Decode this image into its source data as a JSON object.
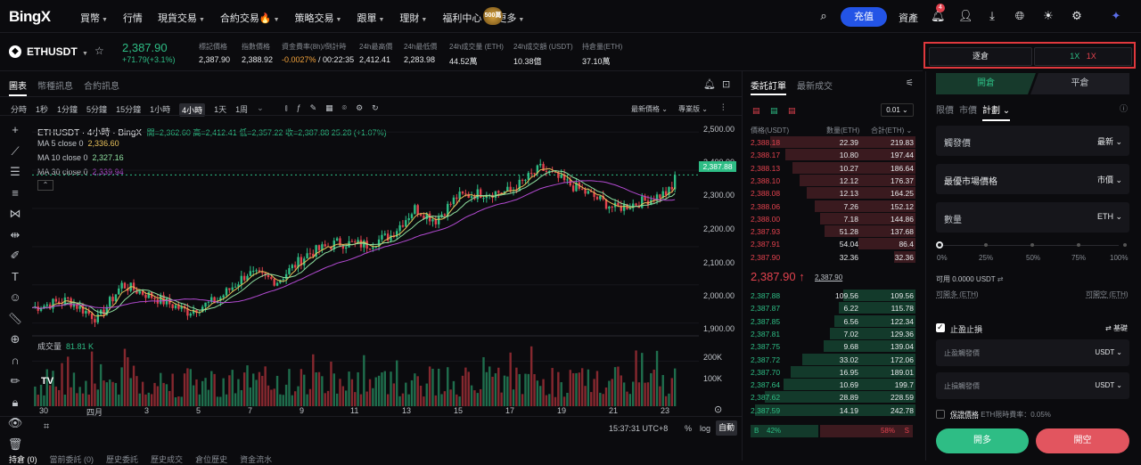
{
  "nav": {
    "logo": "BingX",
    "menu": [
      "買幣",
      "行情",
      "現貨交易",
      "合約交易",
      "策略交易",
      "跟單",
      "理財",
      "福利中心",
      "更多"
    ],
    "charge": "充值",
    "assets": "資產",
    "bell_count": "4",
    "promo": "500萬"
  },
  "ticker": {
    "symbol": "ETHUSDT",
    "price": "2,387.90",
    "change": "+71.79(+3.1%)",
    "stats": [
      {
        "label": "標記價格",
        "value": "2,387.90"
      },
      {
        "label": "指數價格",
        "value": "2,388.92"
      },
      {
        "label": "資金費率(8h)/倒計時",
        "value_a": "-0.0027%",
        "value_b": "/ 00:22:35"
      },
      {
        "label": "24h最高價",
        "value": "2,412.41"
      },
      {
        "label": "24h最低價",
        "value": "2,283.98"
      },
      {
        "label": "24h成交量 (ETH)",
        "value": "44.52萬"
      },
      {
        "label": "24h成交額 (USDT)",
        "value": "10.38億"
      },
      {
        "label": "持倉量(ETH)",
        "value": "37.10萬"
      }
    ]
  },
  "margin": {
    "mode": "逐倉",
    "lev_long": "1X",
    "lev_short": "1X"
  },
  "chart": {
    "tabs": [
      "圖表",
      "幣種訊息",
      "合約訊息"
    ],
    "intervals": [
      "分時",
      "1秒",
      "1分鐘",
      "5分鐘",
      "15分鐘",
      "1小時",
      "4小時",
      "1天",
      "1周"
    ],
    "right_opts": [
      "最新價格",
      "專業版"
    ],
    "title": "ETHUSDT · 4小時 · BingX",
    "ohlc": "開=2,362.60  高=2,412.41  低=2,357.22  收=2,387.88  25.28 (+1.07%)",
    "ma": [
      {
        "label": "MA 5 close 0",
        "value": "2,336.60",
        "color": "#e8c15a"
      },
      {
        "label": "MA 10 close 0",
        "value": "2,327.16",
        "color": "#8fe0a0"
      },
      {
        "label": "MA 30 close 0",
        "value": "2,339.94",
        "color": "#b24ad1"
      }
    ],
    "vol_label": "成交量",
    "vol_value": "81.81 K",
    "last_tag": "2,387.88",
    "y_labels": [
      "2,500.00",
      "2,400.00",
      "2,300.00",
      "2,200.00",
      "2,100.00",
      "2,000.00",
      "1,900.00"
    ],
    "vol_y": [
      "200K",
      "100K"
    ],
    "x_labels": [
      "30",
      "四月",
      "3",
      "5",
      "7",
      "9",
      "11",
      "13",
      "15",
      "17",
      "19",
      "21",
      "23"
    ],
    "time": "15:37:31 UTC+8",
    "pct": "%",
    "log": "log",
    "auto": "自動",
    "bottom_tabs": [
      "持倉 (0)",
      "當前委託 (0)",
      "歷史委託",
      "歷史成交",
      "倉位歷史",
      "資金流水"
    ]
  },
  "book": {
    "tabs": [
      "委託訂單",
      "最新成交"
    ],
    "step": "0.01",
    "headers": [
      "價格(USDT)",
      "數量(ETH)",
      "合計(ETH)"
    ],
    "asks": [
      [
        "2,388.18",
        "22.39",
        "219.83"
      ],
      [
        "2,388.17",
        "10.80",
        "197.44"
      ],
      [
        "2,388.13",
        "10.27",
        "186.64"
      ],
      [
        "2,388.10",
        "12.12",
        "176.37"
      ],
      [
        "2,388.08",
        "12.13",
        "164.25"
      ],
      [
        "2,388.06",
        "7.26",
        "152.12"
      ],
      [
        "2,388.00",
        "7.18",
        "144.86"
      ],
      [
        "2,387.93",
        "51.28",
        "137.68"
      ],
      [
        "2,387.91",
        "54.04",
        "86.4"
      ],
      [
        "2,387.90",
        "32.36",
        "32.36"
      ]
    ],
    "mid": "2,387.90 ↑",
    "mid2": "2,387.90",
    "bids": [
      [
        "2,387.88",
        "109.56",
        "109.56"
      ],
      [
        "2,387.87",
        "6.22",
        "115.78"
      ],
      [
        "2,387.85",
        "6.56",
        "122.34"
      ],
      [
        "2,387.81",
        "7.02",
        "129.36"
      ],
      [
        "2,387.75",
        "9.68",
        "139.04"
      ],
      [
        "2,387.72",
        "33.02",
        "172.06"
      ],
      [
        "2,387.70",
        "16.95",
        "189.01"
      ],
      [
        "2,387.64",
        "10.69",
        "199.7"
      ],
      [
        "2,387.62",
        "28.89",
        "228.59"
      ],
      [
        "2,387.59",
        "14.19",
        "242.78"
      ]
    ],
    "ratio_b": "B",
    "ratio_bp": "42%",
    "ratio_sp": "58%",
    "ratio_s": "S"
  },
  "order": {
    "open": "開倉",
    "close": "平倉",
    "types": [
      "限價",
      "市價",
      "計劃"
    ],
    "trigger": "觸發價",
    "trigger_r": "最新",
    "best": "最優市場價格",
    "best_r": "市價",
    "qty": "數量",
    "qty_r": "ETH",
    "slider": [
      "0%",
      "25%",
      "50%",
      "75%",
      "100%"
    ],
    "avail": "可用 0.0000 USDT",
    "can_long": "可開多 (ETH)",
    "can_short": "可開空 (ETH)",
    "tpsl": "止盈止損",
    "basic": "基礎",
    "tp": "止盈觸發價",
    "tp_u": "USDT",
    "sl": "止損觸發價",
    "sl_u": "USDT",
    "guarantee": "保證價格",
    "guarantee_note": "ETH限時費率：0.05%",
    "long": "開多",
    "short": "開空"
  },
  "colors": {
    "up": "#2ebd85",
    "down": "#e2424e",
    "accent": "#2354e6"
  }
}
